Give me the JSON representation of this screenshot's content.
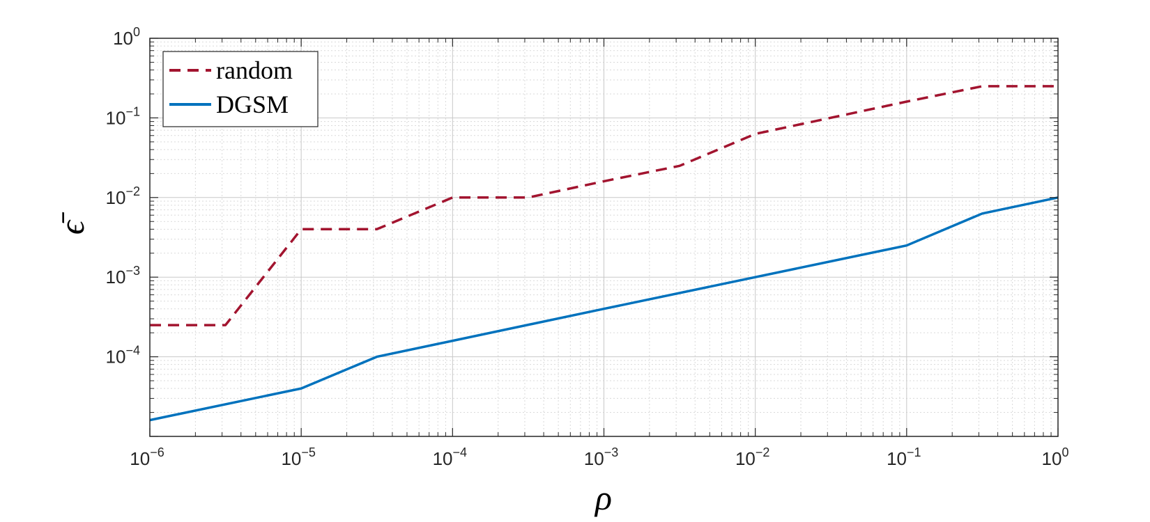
{
  "chart_data": {
    "type": "line",
    "title": "",
    "xlabel": "ρ",
    "ylabel": "ϵ̄",
    "xscale": "log",
    "yscale": "log",
    "xlim": [
      1e-06,
      1
    ],
    "ylim": [
      1e-05,
      1
    ],
    "grid": true,
    "minor_grid": true,
    "legend_position": "top-left",
    "x_ticks": [
      {
        "base": "10",
        "exp": "−6"
      },
      {
        "base": "10",
        "exp": "−5"
      },
      {
        "base": "10",
        "exp": "−4"
      },
      {
        "base": "10",
        "exp": "−3"
      },
      {
        "base": "10",
        "exp": "−2"
      },
      {
        "base": "10",
        "exp": "−1"
      },
      {
        "base": "10",
        "exp": "0"
      }
    ],
    "y_ticks": [
      {
        "base": "10",
        "exp": "−4"
      },
      {
        "base": "10",
        "exp": "−3"
      },
      {
        "base": "10",
        "exp": "−2"
      },
      {
        "base": "10",
        "exp": "−1"
      },
      {
        "base": "10",
        "exp": "0"
      }
    ],
    "series": [
      {
        "name": "random",
        "color": "#a2142f",
        "style": "dashed",
        "x": [
          1e-06,
          3.16e-06,
          1e-05,
          3.16e-05,
          0.0001,
          0.000316,
          0.001,
          0.00316,
          0.01,
          0.1,
          0.316,
          1
        ],
        "y": [
          0.00025,
          0.00025,
          0.004,
          0.004,
          0.01,
          0.01,
          0.016,
          0.025,
          0.063,
          0.16,
          0.25,
          0.25
        ]
      },
      {
        "name": "DGSM",
        "color": "#0072bd",
        "style": "solid",
        "x": [
          1e-06,
          1e-05,
          3.16e-05,
          0.001,
          0.1,
          0.316,
          1
        ],
        "y": [
          1.6e-05,
          4e-05,
          0.0001,
          0.0004,
          0.0025,
          0.0063,
          0.01
        ]
      }
    ]
  }
}
